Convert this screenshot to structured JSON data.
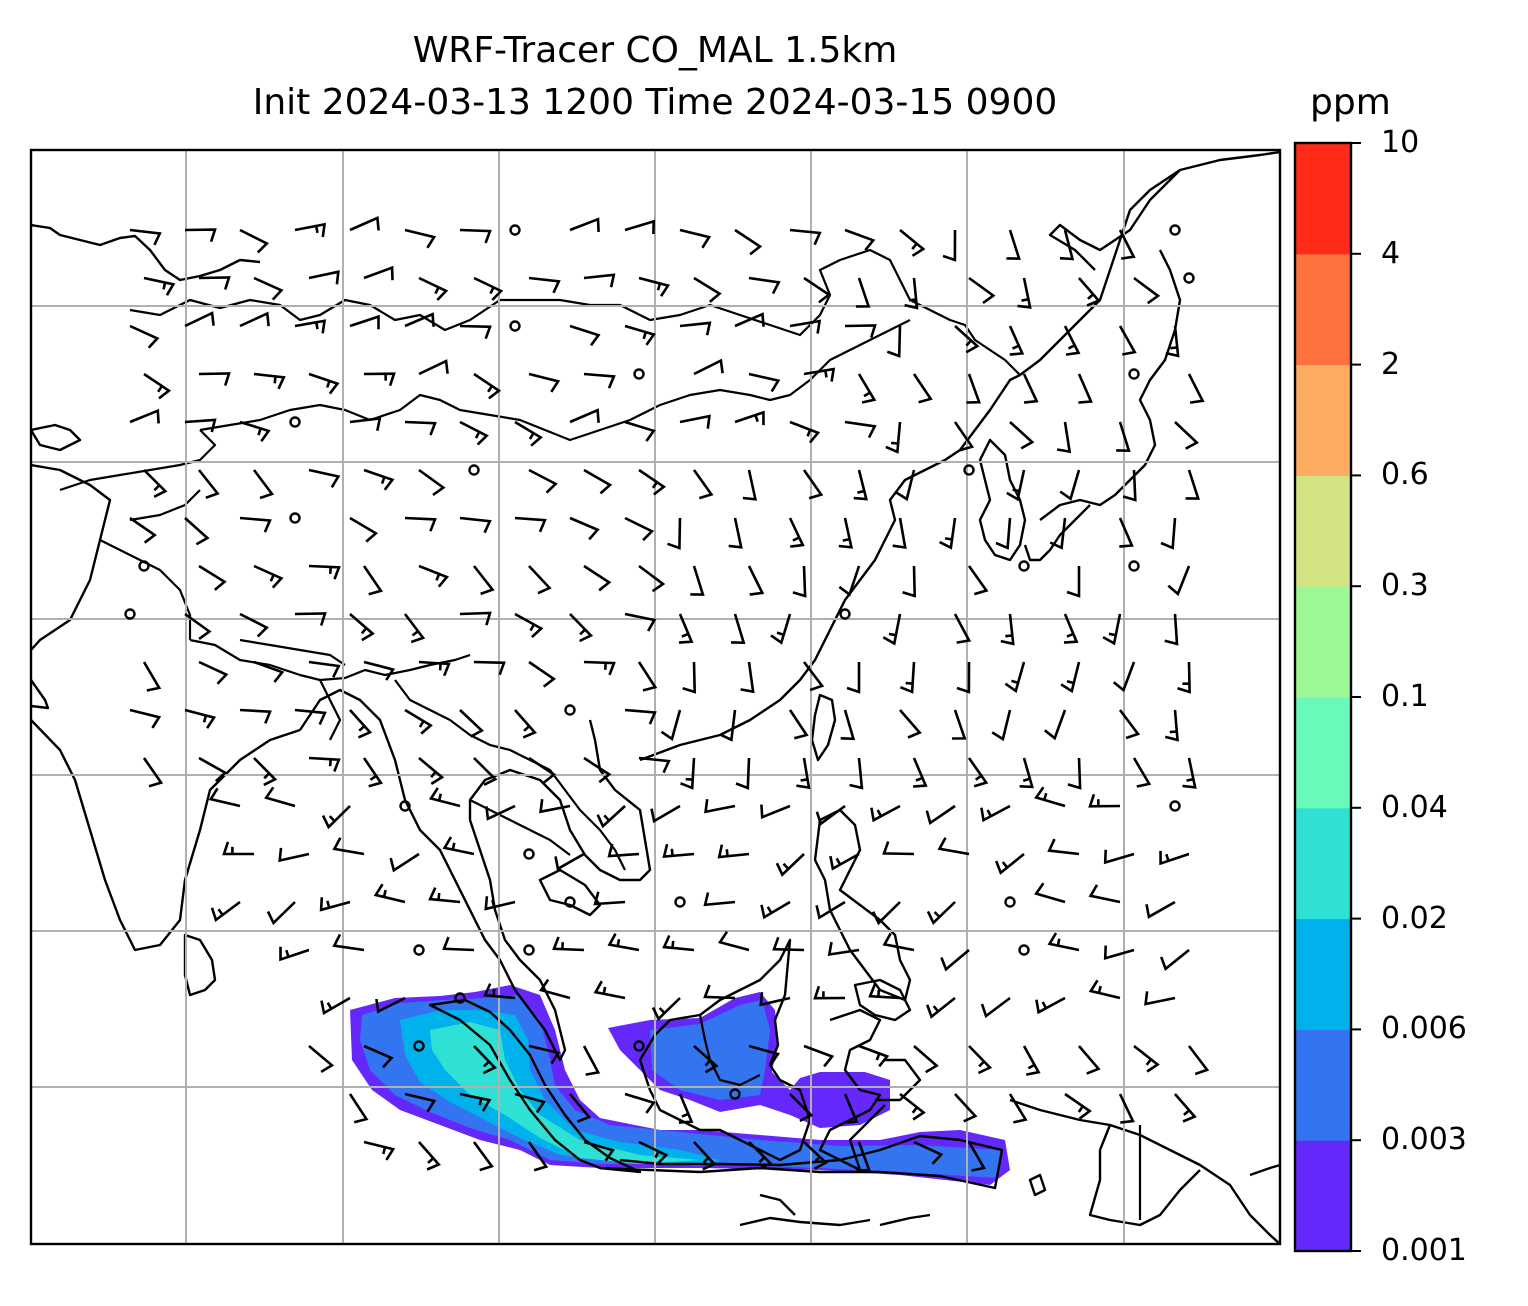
{
  "title_line1": "WRF-Tracer CO_MAL 1.5km",
  "title_line2": "Init 2024-03-13 1200 Time 2024-03-15 0900",
  "colorbar": {
    "unit": "ppm",
    "levels": [
      "0.001",
      "0.003",
      "0.006",
      "0.02",
      "0.04",
      "0.1",
      "0.3",
      "0.6",
      "2",
      "4",
      "10"
    ],
    "colors": [
      "#6528fb",
      "#3374f1",
      "#00b2ec",
      "#2fe0d4",
      "#69faba",
      "#9cf894",
      "#d1e383",
      "#fcac61",
      "#ff723f",
      "#ff2a17"
    ]
  },
  "map": {
    "grid": "on",
    "tracer_colors_shown": [
      "#6528fb",
      "#3374f1",
      "#00b2ec",
      "#2fe0d4"
    ],
    "coastline_color": "#000000",
    "gridline_color": "#b0b0b0"
  }
}
